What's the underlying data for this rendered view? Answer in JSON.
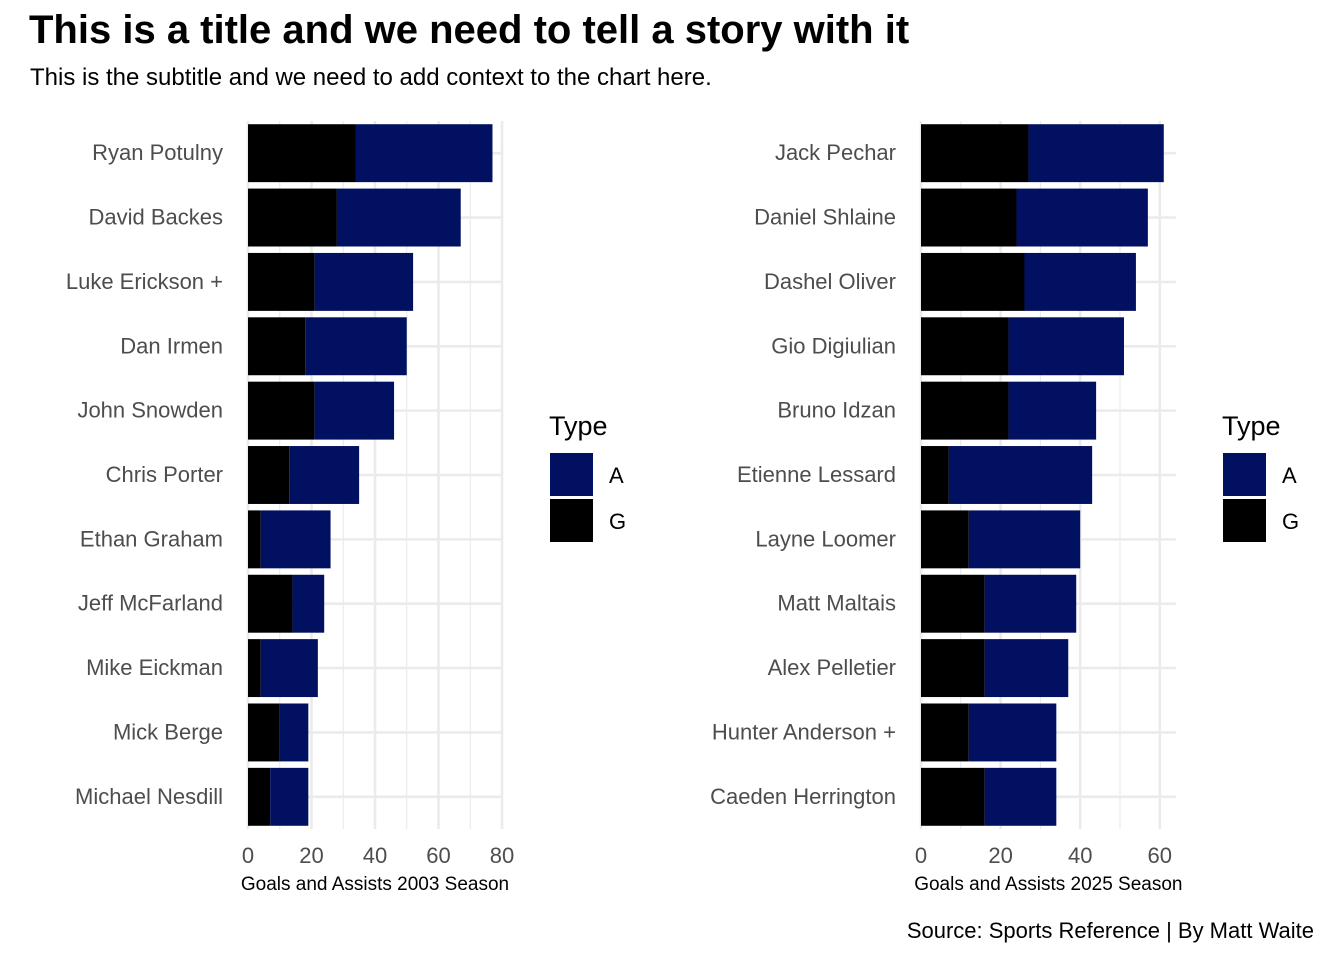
{
  "title": "This is a title and we need to tell a story with it",
  "subtitle": "This is the subtitle and we need to add context to the chart here.",
  "caption": "Source: Sports Reference | By Matt Waite",
  "colors": {
    "A": "#011060",
    "G": "#000000",
    "grid": "#ebebeb",
    "tick_text": "#4d4d4d"
  },
  "chart_data": [
    {
      "type": "bar",
      "orientation": "horizontal",
      "stacked": true,
      "xlabel": "Goals and Assists 2003 Season",
      "xlim": [
        0,
        80
      ],
      "xticks": [
        0,
        20,
        40,
        60,
        80
      ],
      "grid": true,
      "legend": {
        "title": "Type",
        "position": "right",
        "entries": [
          "A",
          "G"
        ]
      },
      "categories": [
        "Ryan Potulny",
        "David Backes",
        "Luke Erickson +",
        "Dan Irmen",
        "John Snowden",
        "Chris Porter",
        "Ethan Graham",
        "Jeff McFarland",
        "Mike Eickman",
        "Mick Berge",
        "Michael Nesdill"
      ],
      "series": [
        {
          "name": "G",
          "values": [
            34,
            28,
            21,
            18,
            21,
            13,
            4,
            14,
            4,
            10,
            7
          ]
        },
        {
          "name": "A",
          "values": [
            43,
            39,
            31,
            32,
            25,
            22,
            22,
            10,
            18,
            9,
            12
          ]
        }
      ]
    },
    {
      "type": "bar",
      "orientation": "horizontal",
      "stacked": true,
      "xlabel": "Goals and Assists 2025 Season",
      "xlim": [
        0,
        64
      ],
      "xticks": [
        0,
        20,
        40,
        60
      ],
      "grid": true,
      "legend": {
        "title": "Type",
        "position": "right",
        "entries": [
          "A",
          "G"
        ]
      },
      "categories": [
        "Jack Pechar",
        "Daniel Shlaine",
        "Dashel Oliver",
        "Gio Digiulian",
        "Bruno Idzan",
        "Etienne Lessard",
        "Layne Loomer",
        "Matt Maltais",
        "Alex Pelletier",
        "Hunter Anderson +",
        "Caeden Herrington"
      ],
      "series": [
        {
          "name": "G",
          "values": [
            27,
            24,
            26,
            22,
            22,
            7,
            12,
            16,
            16,
            12,
            16
          ]
        },
        {
          "name": "A",
          "values": [
            34,
            33,
            28,
            29,
            22,
            36,
            28,
            23,
            21,
            22,
            18
          ]
        }
      ]
    }
  ]
}
